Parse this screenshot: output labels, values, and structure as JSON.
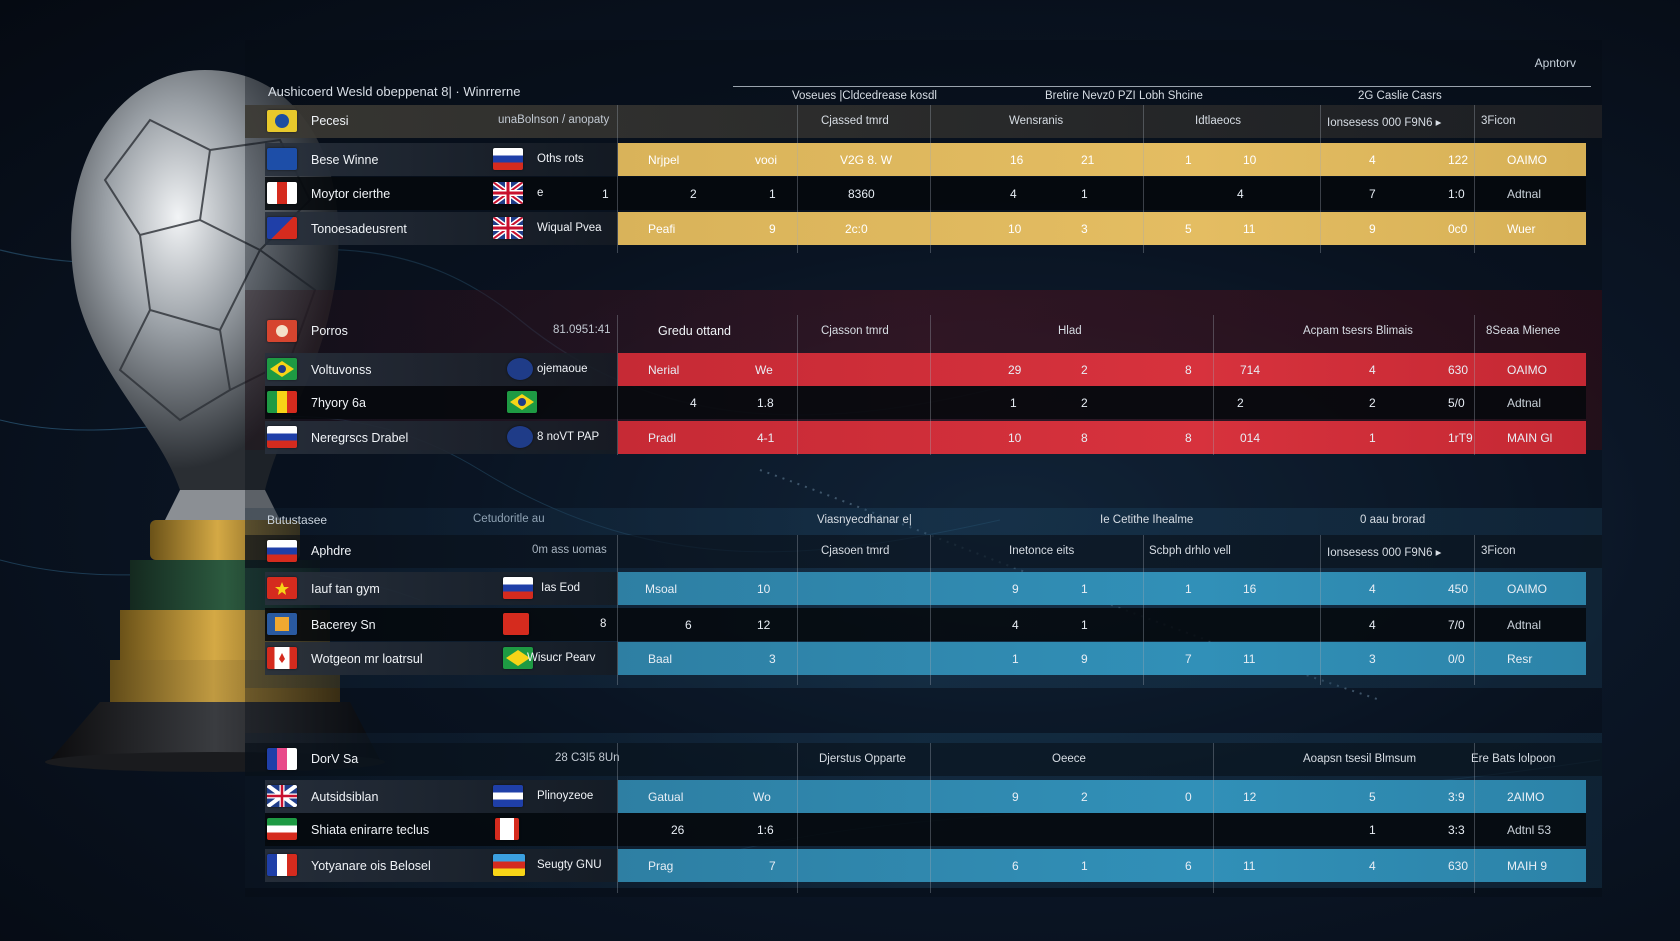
{
  "header": {
    "title": "Aushicoerd  Wesld  obeppenat  8| · Winrrerne",
    "corner_label": "Apntorv",
    "top_groups": [
      "Voseues |Cldcedrease kosdl",
      "Bretire Nevz0 PZI Lobh Shcine",
      "2G Caslie Casrs"
    ]
  },
  "sections": [
    {
      "theme": "gold",
      "label": "Pecesi",
      "subtitle": "unaBolnson / anopaty",
      "columns": [
        "Cjassed tmrd",
        "Wensranis",
        "Idtlaeocs",
        "Ionsesess  000 F9N6  ▸",
        "3Ficon"
      ],
      "rows": [
        {
          "name": "Bese Winne",
          "country": "Oths rots",
          "c1": "Nrjpel",
          "c2": "vooi",
          "c3": "V2G 8. W",
          "c4": "16",
          "c5": "21",
          "c6": "1",
          "c7": "10",
          "c8": "4",
          "c9": "122",
          "c10": "OAIMO",
          "highlight": true
        },
        {
          "name": "Moytor cierthe",
          "country": "e",
          "c1": "1",
          "c2": "2",
          "c3": "1",
          "c4": "8360",
          "c5": "4",
          "c6": "1",
          "c7": "4",
          "c8": "7",
          "c9": "1:0",
          "c10": "Adtnal",
          "highlight": false
        },
        {
          "name": "Tonoesadeusrent",
          "country": "Wiqual Pvea",
          "c1": "Peafi",
          "c2": "9",
          "c3": "2c:0",
          "c4": "10",
          "c5": "3",
          "c6": "5",
          "c7": "11",
          "c8": "9",
          "c9": "0c0",
          "c10": "Wuer",
          "highlight": true
        }
      ]
    },
    {
      "theme": "red",
      "label": "Porros",
      "subtitle": "81.0951:41",
      "subtitle2": "Gredu ottand",
      "columns": [
        "Cjasson tmrd",
        "Hlad",
        "Acpam tsesrs Blimais",
        "8Seaa Mienee"
      ],
      "rows": [
        {
          "name": "Voltuvonss",
          "country": "ojemaoue",
          "c1": "Nerial",
          "c2": "We",
          "c3": "",
          "c4": "29",
          "c5": "2",
          "c6": "8",
          "c7": "714",
          "c8": "4",
          "c9": "630",
          "c10": "OAIMO",
          "highlight": true
        },
        {
          "name": "7hyory 6a",
          "country": "",
          "c1": "4",
          "c2": "1.8",
          "c3": "",
          "c4": "1",
          "c5": "2",
          "c6": "",
          "c7": "2",
          "c8": "2",
          "c9": "5/0",
          "c10": "Adtnal",
          "highlight": false
        },
        {
          "name": "Neregrscs Drabel",
          "country": "8 noVT PAP",
          "c1": "Pradl",
          "c2": "4-1",
          "c3": "",
          "c4": "10",
          "c5": "8",
          "c6": "8",
          "c7": "014",
          "c8": "1",
          "c9": "1rT9",
          "c10": "MAIN Gl",
          "highlight": true
        }
      ]
    },
    {
      "theme": "blue",
      "label": "Butustasee",
      "subtitle": "Cetudoritle au",
      "group_heads": [
        "Viasnyecdhanar e|",
        "Ie Cetithe Ihealme",
        "0 aau brorad"
      ],
      "sub_label": "Aphdre",
      "sub_subtitle": "0m ass uomas",
      "columns": [
        "Cjasoen tmrd",
        "Inetonce eits",
        "Scbph drhlo vell",
        "Ionsesess  000 F9N6  ▸",
        "3Ficon"
      ],
      "rows": [
        {
          "name": "Iauf tan gym",
          "country": "Ias Eod",
          "c1": "Msoal",
          "c2": "10",
          "c3": "",
          "c4": "9",
          "c5": "1",
          "c6": "1",
          "c7": "16",
          "c8": "4",
          "c9": "450",
          "c10": "OAIMO",
          "highlight": true
        },
        {
          "name": "Bacerey Sn",
          "country": "8",
          "c1": "6",
          "c2": "12",
          "c3": "",
          "c4": "4",
          "c5": "1",
          "c6": "",
          "c7": "",
          "c8": "4",
          "c9": "7/0",
          "c10": "Adtnal",
          "highlight": false
        },
        {
          "name": "Wotgeon mr loatrsul",
          "country": "Wisucr Pearv",
          "c1": "Baal",
          "c2": "3",
          "c3": "",
          "c4": "1",
          "c5": "9",
          "c6": "7",
          "c7": "11",
          "c8": "3",
          "c9": "0/0",
          "c10": "Resr",
          "highlight": true
        }
      ]
    },
    {
      "theme": "blue",
      "label": "DorV Sa",
      "subtitle": "28 C3I5 8Un",
      "columns": [
        "Djerstus Opparte",
        "Oeece",
        "Aoapsn tsesil Blmsum",
        "Ere Bats lolpoon"
      ],
      "rows": [
        {
          "name": "Autsidsiblan",
          "country": "Plinoyzeoe",
          "c1": "Gatual",
          "c2": "Wo",
          "c3": "",
          "c4": "9",
          "c5": "2",
          "c6": "0",
          "c7": "12",
          "c8": "5",
          "c9": "3:9",
          "c10": "2AIMO",
          "highlight": true
        },
        {
          "name": "Shiata enirarre teclus",
          "country": "",
          "c1": "26",
          "c2": "1:6",
          "c3": "",
          "c4": "",
          "c5": "",
          "c6": "",
          "c7": "",
          "c8": "1",
          "c9": "3:3",
          "c10": "Adtnl 53",
          "highlight": false
        },
        {
          "name": "Yotyanare ois Belosel",
          "country": "Seugty GNU",
          "c1": "Prag",
          "c2": "7",
          "c3": "",
          "c4": "6",
          "c5": "1",
          "c6": "6",
          "c7": "11",
          "c8": "4",
          "c9": "630",
          "c10": "MAIH 9",
          "highlight": true
        }
      ]
    }
  ]
}
